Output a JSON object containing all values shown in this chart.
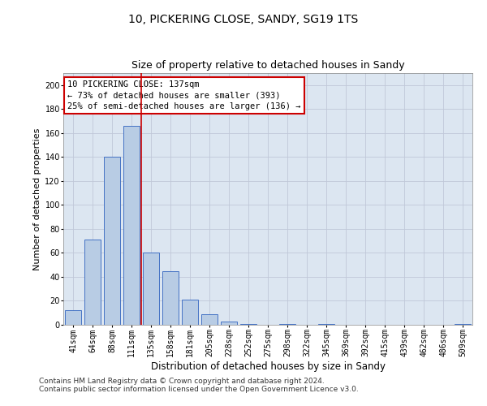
{
  "title1": "10, PICKERING CLOSE, SANDY, SG19 1TS",
  "title2": "Size of property relative to detached houses in Sandy",
  "xlabel": "Distribution of detached houses by size in Sandy",
  "ylabel": "Number of detached properties",
  "categories": [
    "41sqm",
    "64sqm",
    "88sqm",
    "111sqm",
    "135sqm",
    "158sqm",
    "181sqm",
    "205sqm",
    "228sqm",
    "252sqm",
    "275sqm",
    "298sqm",
    "322sqm",
    "345sqm",
    "369sqm",
    "392sqm",
    "415sqm",
    "439sqm",
    "462sqm",
    "486sqm",
    "509sqm"
  ],
  "values": [
    12,
    71,
    140,
    166,
    60,
    45,
    21,
    9,
    3,
    1,
    0,
    1,
    0,
    1,
    0,
    0,
    0,
    0,
    0,
    0,
    1
  ],
  "bar_color": "#b8cce4",
  "bar_edgecolor": "#4472c4",
  "grid_color": "#c0c8d8",
  "background_color": "#dce6f1",
  "vline_pos": 3.5,
  "vline_color": "#cc0000",
  "annotation_text": "10 PICKERING CLOSE: 137sqm\n← 73% of detached houses are smaller (393)\n25% of semi-detached houses are larger (136) →",
  "annotation_box_facecolor": "#ffffff",
  "annotation_box_edgecolor": "#cc0000",
  "ylim": [
    0,
    210
  ],
  "yticks": [
    0,
    20,
    40,
    60,
    80,
    100,
    120,
    140,
    160,
    180,
    200
  ],
  "footnote1": "Contains HM Land Registry data © Crown copyright and database right 2024.",
  "footnote2": "Contains public sector information licensed under the Open Government Licence v3.0.",
  "title1_fontsize": 10,
  "title2_fontsize": 9,
  "xlabel_fontsize": 8.5,
  "ylabel_fontsize": 8,
  "tick_fontsize": 7,
  "annotation_fontsize": 7.5,
  "footnote_fontsize": 6.5
}
